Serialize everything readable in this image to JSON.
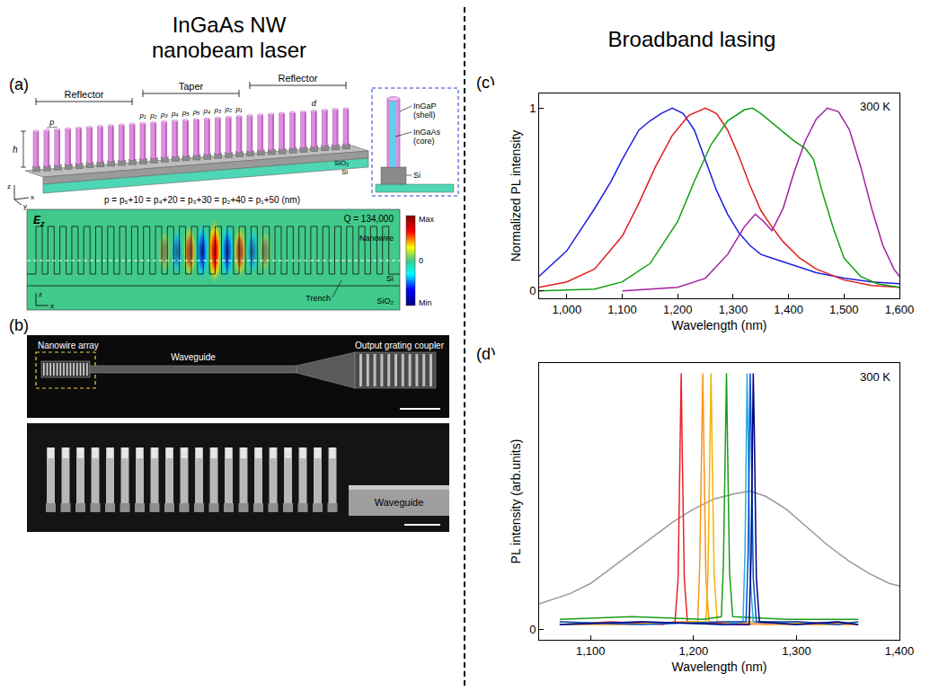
{
  "left_heading": [
    "InGaAs NW",
    "nanobeam laser"
  ],
  "right_heading": "Broadband lasing",
  "panel_a": {
    "letter": "(a)",
    "sections": [
      "Reflector",
      "Taper",
      "Reflector"
    ],
    "reflector_period": "p",
    "taper_periods": [
      "p₁",
      "p₂",
      "p₃",
      "p₄",
      "p₅",
      "p₅",
      "p₄",
      "p₃",
      "p₂",
      "p₁"
    ],
    "diameter": "d",
    "height": "h",
    "substrate": [
      "SiO₂",
      "Si"
    ],
    "axes": [
      "x",
      "y",
      "z"
    ],
    "formula": "p = p₅+10 = p₄+20 = p₃+30 = p₂+40 = p₁+50 (nm)",
    "inset": {
      "shell": [
        "InGaP",
        "(shell)"
      ],
      "core": [
        "InGaAs",
        "(core)"
      ],
      "base": "Si"
    },
    "field_map": {
      "field": {
        "base": "E",
        "sub": "z"
      },
      "quality": "Q = 134,000",
      "colorbar": [
        "Max",
        "0",
        "Min"
      ],
      "labels": {
        "nanowire": "Nanowire",
        "si": "Si",
        "trench": "Trench",
        "sio2": "SiO₂"
      },
      "axes": [
        "z",
        "x"
      ]
    }
  },
  "panel_b": {
    "letter": "(b)",
    "top_labels": {
      "array": "Nanowire array",
      "waveguide": "Waveguide",
      "coupler": "Output grating coupler"
    },
    "bottom_label": "Waveguide"
  },
  "chart_data": [
    {
      "letter": "(c)",
      "type": "line",
      "annotation": "300 K",
      "x_label": "Wavelength (nm)",
      "y_label": "Normalized PL intensity",
      "xlim": [
        950,
        1600
      ],
      "ylim": [
        -0.04,
        1.08
      ],
      "xticks": [
        {
          "value": 1000,
          "label": "1,000"
        },
        {
          "value": 1100,
          "label": "1,100"
        },
        {
          "value": 1200,
          "label": "1,200"
        },
        {
          "value": 1300,
          "label": "1,300"
        },
        {
          "value": 1400,
          "label": "1,400"
        },
        {
          "value": 1500,
          "label": "1,500"
        },
        {
          "value": 1600,
          "label": "1,600"
        }
      ],
      "yticks": [
        0,
        1
      ],
      "grid": false,
      "series": [
        {
          "color": "#1f1fe0",
          "x": [
            950,
            1000,
            1050,
            1080,
            1100,
            1130,
            1150,
            1170,
            1190,
            1210,
            1230,
            1250,
            1270,
            1290,
            1310,
            1330,
            1350,
            1370,
            1400,
            1450,
            1500,
            1550,
            1600
          ],
          "values": [
            0.08,
            0.22,
            0.45,
            0.6,
            0.72,
            0.88,
            0.93,
            0.97,
            1.0,
            0.97,
            0.88,
            0.72,
            0.55,
            0.42,
            0.32,
            0.25,
            0.2,
            0.18,
            0.15,
            0.1,
            0.07,
            0.05,
            0.04
          ]
        },
        {
          "color": "#e01f1f",
          "x": [
            950,
            1000,
            1050,
            1100,
            1130,
            1160,
            1190,
            1220,
            1250,
            1270,
            1290,
            1310,
            1330,
            1350,
            1370,
            1390,
            1420,
            1450,
            1500,
            1550,
            1600
          ],
          "values": [
            0.02,
            0.05,
            0.12,
            0.3,
            0.48,
            0.68,
            0.85,
            0.96,
            1.0,
            0.97,
            0.88,
            0.74,
            0.58,
            0.44,
            0.35,
            0.27,
            0.18,
            0.12,
            0.06,
            0.03,
            0.02
          ]
        },
        {
          "color": "#10a010",
          "x": [
            950,
            1050,
            1100,
            1150,
            1200,
            1230,
            1260,
            1290,
            1320,
            1335,
            1350,
            1370,
            1390,
            1410,
            1430,
            1445,
            1460,
            1480,
            1500,
            1530,
            1560,
            1600
          ],
          "values": [
            0.0,
            0.01,
            0.05,
            0.15,
            0.38,
            0.6,
            0.8,
            0.93,
            0.99,
            1.0,
            0.97,
            0.92,
            0.87,
            0.82,
            0.78,
            0.72,
            0.55,
            0.35,
            0.18,
            0.08,
            0.04,
            0.02
          ]
        },
        {
          "color": "#a020a0",
          "x": [
            1100,
            1200,
            1250,
            1290,
            1320,
            1340,
            1355,
            1370,
            1390,
            1410,
            1430,
            1450,
            1470,
            1490,
            1510,
            1530,
            1550,
            1570,
            1590,
            1600
          ],
          "values": [
            0.0,
            0.02,
            0.07,
            0.2,
            0.35,
            0.42,
            0.38,
            0.33,
            0.45,
            0.65,
            0.82,
            0.94,
            1.0,
            0.98,
            0.88,
            0.68,
            0.45,
            0.25,
            0.12,
            0.08
          ]
        }
      ]
    },
    {
      "letter": "(d)",
      "type": "line",
      "annotation": "300 K",
      "x_label": "Wavelength (nm)",
      "y_label": "PL intensity (arb.units)",
      "xlim": [
        1050,
        1400
      ],
      "ylim": [
        -0.04,
        1.04
      ],
      "xticks": [
        {
          "value": 1100,
          "label": "1,100"
        },
        {
          "value": 1200,
          "label": "1,200"
        },
        {
          "value": 1300,
          "label": "1,300"
        },
        {
          "value": 1400,
          "label": "1,400"
        }
      ],
      "yticks": [
        0
      ],
      "grid": false,
      "series": [
        {
          "color": "#999999",
          "x": [
            1050,
            1080,
            1100,
            1120,
            1140,
            1160,
            1180,
            1200,
            1220,
            1240,
            1255,
            1270,
            1290,
            1310,
            1330,
            1350,
            1370,
            1390,
            1400
          ],
          "values": [
            0.1,
            0.14,
            0.18,
            0.24,
            0.3,
            0.36,
            0.42,
            0.47,
            0.51,
            0.53,
            0.54,
            0.52,
            0.47,
            0.4,
            0.33,
            0.27,
            0.22,
            0.18,
            0.17
          ]
        },
        {
          "color": "#e8232a",
          "x": [
            1070,
            1120,
            1170,
            1182,
            1185,
            1187,
            1188,
            1189,
            1191,
            1194,
            1250,
            1300,
            1360
          ],
          "values": [
            0.02,
            0.03,
            0.02,
            0.03,
            0.2,
            0.7,
            1.0,
            0.7,
            0.2,
            0.03,
            0.02,
            0.03,
            0.02
          ]
        },
        {
          "color": "#f7941d",
          "x": [
            1070,
            1130,
            1190,
            1204,
            1206,
            1208,
            1209,
            1210,
            1212,
            1215,
            1270,
            1320,
            1360
          ],
          "values": [
            0.02,
            0.02,
            0.03,
            0.03,
            0.25,
            0.75,
            1.0,
            0.72,
            0.2,
            0.03,
            0.02,
            0.02,
            0.02
          ]
        },
        {
          "color": "#f2b400",
          "x": [
            1070,
            1140,
            1200,
            1212,
            1214,
            1216,
            1217,
            1218,
            1220,
            1223,
            1280,
            1330,
            1360
          ],
          "values": [
            0.03,
            0.02,
            0.03,
            0.03,
            0.22,
            0.7,
            1.0,
            0.7,
            0.22,
            0.03,
            0.03,
            0.02,
            0.03
          ]
        },
        {
          "color": "#1a9e1a",
          "x": [
            1070,
            1140,
            1210,
            1227,
            1229,
            1231,
            1232,
            1233,
            1235,
            1238,
            1290,
            1330,
            1360
          ],
          "values": [
            0.04,
            0.05,
            0.04,
            0.05,
            0.25,
            0.75,
            1.0,
            0.72,
            0.22,
            0.05,
            0.04,
            0.04,
            0.04
          ]
        },
        {
          "color": "#29abe2",
          "x": [
            1070,
            1150,
            1230,
            1248,
            1250,
            1251,
            1252,
            1253,
            1255,
            1258,
            1300,
            1340,
            1360
          ],
          "values": [
            0.02,
            0.03,
            0.02,
            0.03,
            0.3,
            0.8,
            1.0,
            0.75,
            0.2,
            0.03,
            0.02,
            0.03,
            0.02
          ]
        },
        {
          "color": "#0050d0",
          "x": [
            1070,
            1150,
            1230,
            1251,
            1253,
            1254,
            1255,
            1256,
            1258,
            1261,
            1300,
            1340,
            1360
          ],
          "values": [
            0.03,
            0.02,
            0.03,
            0.03,
            0.3,
            0.8,
            1.0,
            0.78,
            0.2,
            0.03,
            0.03,
            0.02,
            0.03
          ]
        },
        {
          "color": "#000080",
          "x": [
            1070,
            1150,
            1230,
            1254,
            1256,
            1257,
            1258,
            1259,
            1261,
            1264,
            1300,
            1340,
            1360
          ],
          "values": [
            0.02,
            0.03,
            0.02,
            0.02,
            0.3,
            0.8,
            1.0,
            0.78,
            0.2,
            0.03,
            0.02,
            0.03,
            0.02
          ]
        }
      ]
    }
  ]
}
